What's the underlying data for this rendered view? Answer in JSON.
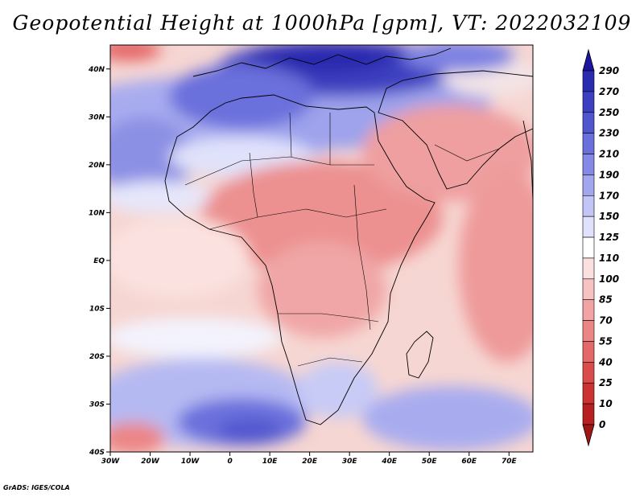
{
  "title": "Geopotential Height at 1000hPa [gpm], VT: 2022032109",
  "credit": "GrADS: IGES/COLA",
  "map": {
    "lon_range": [
      -30,
      76
    ],
    "lat_range": [
      -40,
      45
    ],
    "lat_ticks": [
      {
        "lat": 40,
        "label": "40N"
      },
      {
        "lat": 30,
        "label": "30N"
      },
      {
        "lat": 20,
        "label": "20N"
      },
      {
        "lat": 10,
        "label": "10N"
      },
      {
        "lat": 0,
        "label": "EQ"
      },
      {
        "lat": -10,
        "label": "10S"
      },
      {
        "lat": -20,
        "label": "20S"
      },
      {
        "lat": -30,
        "label": "30S"
      },
      {
        "lat": -40,
        "label": "40S"
      }
    ],
    "lon_ticks": [
      {
        "lon": -30,
        "label": "30W"
      },
      {
        "lon": -20,
        "label": "20W"
      },
      {
        "lon": -10,
        "label": "10W"
      },
      {
        "lon": 0,
        "label": "0"
      },
      {
        "lon": 10,
        "label": "10E"
      },
      {
        "lon": 20,
        "label": "20E"
      },
      {
        "lon": 30,
        "label": "30E"
      },
      {
        "lon": 40,
        "label": "40E"
      },
      {
        "lon": 50,
        "label": "50E"
      },
      {
        "lon": 60,
        "label": "60E"
      },
      {
        "lon": 70,
        "label": "70E"
      }
    ]
  },
  "colorbar": {
    "labels": [
      "290",
      "270",
      "250",
      "230",
      "210",
      "190",
      "170",
      "150",
      "125",
      "110",
      "100",
      "85",
      "70",
      "55",
      "40",
      "25",
      "10",
      "0"
    ],
    "colors": [
      "#1d14a0",
      "#2a2cb0",
      "#3c3fc0",
      "#5156ce",
      "#6a6fdc",
      "#8489e6",
      "#a2a6ee",
      "#c2c5f5",
      "#e0e2fb",
      "#ffffff",
      "#fbe0e0",
      "#f7c2c2",
      "#f2a3a3",
      "#ec8585",
      "#e46868",
      "#da4c4c",
      "#cc3232",
      "#b81f1f",
      "#a01616"
    ]
  },
  "field": {
    "land_color": "#eeb0ac",
    "sea_color": "#f6d0cc"
  }
}
